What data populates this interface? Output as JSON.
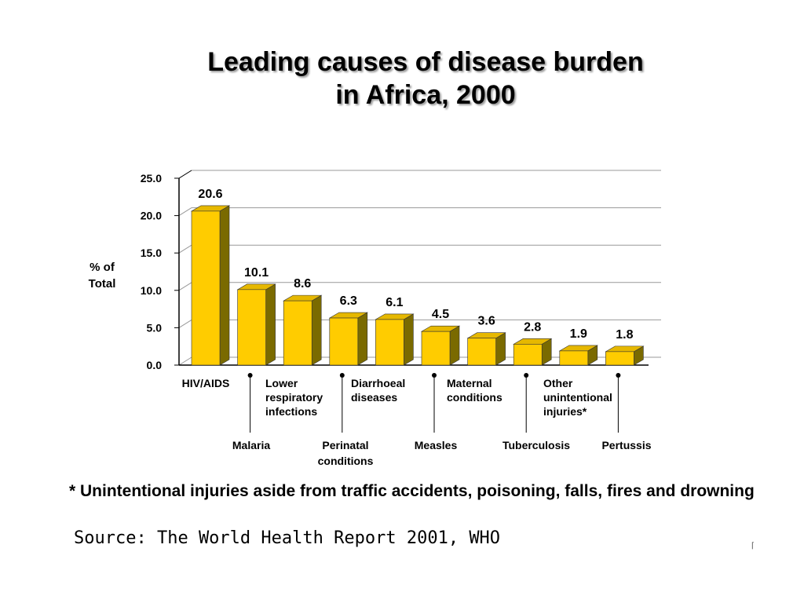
{
  "title_line1": "Leading causes of disease burden",
  "title_line2": "in Africa, 2000",
  "ylabel": "% of Total",
  "footnote": "* Unintentional injuries aside from traffic accidents, poisoning, falls, fires and drowning",
  "source": "Source: The World Health Report 2001, WHO",
  "colors": {
    "bar_front": "#FFCC00",
    "bar_side": "#7A6A00",
    "bar_top": "#E6B800",
    "grid": "#999999"
  },
  "chart_data": {
    "type": "bar",
    "title": "Leading causes of disease burden in Africa, 2000",
    "xlabel": "",
    "ylabel": "% of Total",
    "ylim": [
      0,
      25
    ],
    "yticks": [
      "0.0",
      "5.0",
      "10.0",
      "15.0",
      "20.0",
      "25.0"
    ],
    "grid": true,
    "categories": [
      {
        "label": [
          "HIV/AIDS"
        ],
        "row": "upper"
      },
      {
        "label": [
          "Malaria"
        ],
        "row": "lower"
      },
      {
        "label": [
          "Lower",
          "respiratory",
          "infections"
        ],
        "row": "upper"
      },
      {
        "label": [
          "Perinatal",
          "conditions"
        ],
        "row": "lower"
      },
      {
        "label": [
          "Diarrhoeal",
          "diseases"
        ],
        "row": "upper"
      },
      {
        "label": [
          "Measles"
        ],
        "row": "lower"
      },
      {
        "label": [
          "Maternal",
          "conditions"
        ],
        "row": "upper"
      },
      {
        "label": [
          "Tuberculosis"
        ],
        "row": "lower"
      },
      {
        "label": [
          "Other",
          "unintentional",
          "injuries*"
        ],
        "row": "upper"
      },
      {
        "label": [
          "Pertussis"
        ],
        "row": "lower"
      }
    ],
    "values": [
      20.6,
      10.1,
      8.6,
      6.3,
      6.1,
      4.5,
      3.6,
      2.8,
      1.9,
      1.8
    ],
    "value_labels": [
      "20.6",
      "10.1",
      "8.6",
      "6.3",
      "6.1",
      "4.5",
      "3.6",
      "2.8",
      "1.9",
      "1.8"
    ]
  }
}
